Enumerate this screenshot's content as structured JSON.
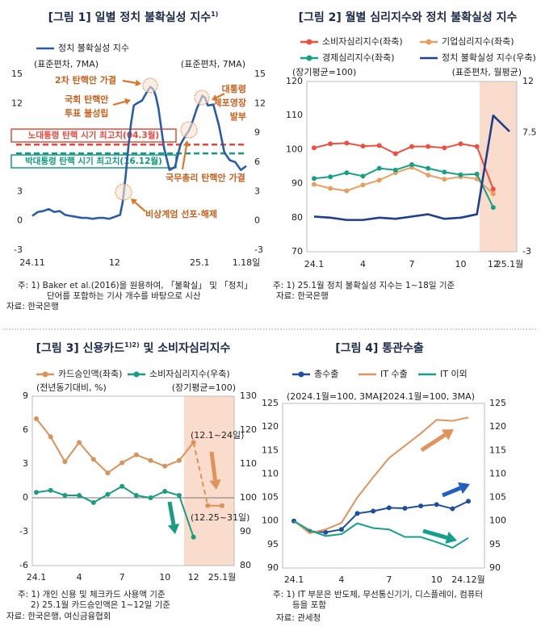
{
  "chart_data": [
    {
      "type": "line",
      "title": [
        "[그림 1] 일별 정치 불확실성 지수",
        "1)"
      ],
      "y_label": "(표준편차, 7MA)",
      "y2_label": "(표준편차, 7MA)",
      "x": [
        0,
        2,
        4,
        6,
        8,
        10,
        12,
        14,
        16,
        18,
        20,
        22,
        24,
        26,
        28,
        30,
        32,
        33,
        34,
        35,
        36,
        37,
        38,
        40,
        42,
        43,
        44,
        45,
        46,
        48,
        50,
        52,
        54,
        56,
        57,
        58,
        60,
        62,
        63,
        64,
        66,
        68,
        70,
        72,
        74,
        76,
        78
      ],
      "xlim": [
        0,
        78
      ],
      "xticks": [
        {
          "value": 0,
          "label": "24.11"
        },
        {
          "value": 30,
          "label": "12"
        },
        {
          "value": 61,
          "label": "25.1"
        },
        {
          "value": 78,
          "label": "1.18일"
        }
      ],
      "ylim": [
        -3,
        15
      ],
      "yticks": [
        -3,
        0,
        3,
        6,
        9,
        12,
        15
      ],
      "y2lim": [
        -3,
        15
      ],
      "y2ticks": [
        -3,
        0,
        3,
        6,
        9,
        12,
        15
      ],
      "series": [
        {
          "name": "정치 불확실성 지수",
          "color": "#2b5ca8",
          "values": [
            0.5,
            0.9,
            1.0,
            1.2,
            0.9,
            1.0,
            0.6,
            0.5,
            0.4,
            0.3,
            0.3,
            0.2,
            0.3,
            0.3,
            0.2,
            0.4,
            0.6,
            2.0,
            4.5,
            7.5,
            10.0,
            11.8,
            12.0,
            12.3,
            13.3,
            13.7,
            13.5,
            12.8,
            11.5,
            7.5,
            5.2,
            5.5,
            7.8,
            8.8,
            9.2,
            9.8,
            11.5,
            12.8,
            12.6,
            11.8,
            11.9,
            9.8,
            7.0,
            6.2,
            6.0,
            5.2,
            5.6
          ]
        }
      ],
      "reference_lines": [
        {
          "label": "노대통령 탄핵 시기 최고치(04.3월)",
          "value": 7.8,
          "color": "#e8483b"
        },
        {
          "label": "박대통령 탄핵 시기 최고치(16.12월)",
          "value": 6.9,
          "color": "#139b7f"
        }
      ],
      "annotations": [
        {
          "lines": [
            "2차 탄핵안 가결"
          ]
        },
        {
          "lines": [
            "국회 탄핵안",
            "투표 불성립"
          ]
        },
        {
          "lines": [
            "대통령",
            "체포영장",
            "발부"
          ]
        },
        {
          "lines": [
            "국무총리 탄핵안 가결"
          ]
        },
        {
          "lines": [
            "비상계엄 선포·해제"
          ]
        }
      ],
      "notes": [
        "주: 1) Baker et al.(2016)을 원용하여, 「불확실」 및 「정치」",
        "단어를 포함하는 기사 개수를 바탕으로 시산",
        "자료: 한국은행"
      ]
    },
    {
      "type": "line",
      "title": [
        "[그림 2] 월별 심리지수와 정치 불확실성 지수"
      ],
      "y_label": "(장기평균=100)",
      "y2_label": "(표준편차, 월평균)",
      "categories": [
        "24.1",
        null,
        null,
        "4",
        null,
        null,
        "7",
        null,
        null,
        "10",
        null,
        "12",
        "25.1월"
      ],
      "ylim": [
        70,
        120
      ],
      "yticks": [
        70,
        80,
        90,
        100,
        110,
        120
      ],
      "y2lim": [
        -3,
        12
      ],
      "y2ticks": [
        -3,
        7.5,
        12
      ],
      "series": [
        {
          "name": "소비자심리지수(좌축)",
          "color": "#f04e3e",
          "marker": true,
          "values": [
            100.5,
            101.7,
            101.9,
            101.0,
            101.2,
            98.8,
            100.9,
            100.9,
            100.5,
            101.7,
            100.9,
            88.4,
            null
          ]
        },
        {
          "name": "기업심리지수(좌축)",
          "color": "#e6a060",
          "marker": true,
          "values": [
            89.8,
            88.6,
            87.9,
            89.6,
            91.0,
            93.2,
            94.8,
            92.5,
            91.3,
            92.0,
            91.4,
            87.0,
            null
          ]
        },
        {
          "name": "경제심리지수(좌축)",
          "color": "#17a086",
          "marker": true,
          "values": [
            91.5,
            92.0,
            93.2,
            92.2,
            94.5,
            94.0,
            95.6,
            94.5,
            93.4,
            92.6,
            92.8,
            83.0,
            null
          ]
        },
        {
          "name": "정치 불확실성 지수(우축)",
          "color": "#1f3f8c",
          "axis": "y2",
          "values": [
            0.1,
            0.0,
            -0.2,
            -0.2,
            0.0,
            -0.1,
            0.1,
            0.3,
            -0.1,
            0.0,
            0.3,
            9.0,
            7.6
          ]
        }
      ],
      "notes": [
        "주: 1) 25.1월 정치 불확실성 지수는 1~18일 기준",
        "자료: 한국은행"
      ]
    },
    {
      "type": "line",
      "title": [
        "[그림 3] 신용카드",
        "1)2)",
        " 및 소비자심리지수"
      ],
      "y_label": "(전년동기대비, %)",
      "y2_label": "(장기평균=100)",
      "categories": [
        "24.1",
        null,
        null,
        "4",
        null,
        null,
        "7",
        null,
        null,
        "10",
        null,
        "12",
        null,
        "25.1월"
      ],
      "ylim": [
        -6,
        9
      ],
      "yticks": [
        -6,
        -3,
        0,
        3,
        6,
        9
      ],
      "y2lim": [
        80,
        130
      ],
      "y2ticks": [
        80,
        90,
        100,
        110,
        120,
        130
      ],
      "series": [
        {
          "name": "카드승인액(좌축)",
          "color": "#d9925a",
          "marker": true,
          "dashed_range": [
            11,
            12
          ],
          "values": [
            7.0,
            5.4,
            3.2,
            4.9,
            3.4,
            2.2,
            3.1,
            3.8,
            3.3,
            2.8,
            3.3,
            4.9,
            -0.7,
            -0.7
          ]
        },
        {
          "name": "소비자심리지수(우축)",
          "color": "#1a9c80",
          "marker": true,
          "axis": "y2",
          "values": [
            101.6,
            102.2,
            100.7,
            100.7,
            98.6,
            101.0,
            103.4,
            100.7,
            100.0,
            101.9,
            100.7,
            88.4,
            null,
            null
          ]
        }
      ],
      "annotations": [
        {
          "lines": [
            "(12.1~24일)"
          ]
        },
        {
          "lines": [
            "(12.25~31일)"
          ]
        }
      ],
      "notes": [
        "주: 1) 개인 신용 및 체크카드 사용액 기준",
        "2) 25.1월 카드승인액은 1~12일 기준",
        "자료: 한국은행, 여신금융협회"
      ]
    },
    {
      "type": "line",
      "title": [
        "[그림 4] 통관수출"
      ],
      "y_label": "(2024.1월=100, 3MA)",
      "y2_label": "(2024.1월=100, 3MA)",
      "categories": [
        "24.1",
        null,
        null,
        "4",
        null,
        null,
        "7",
        null,
        null,
        "10",
        null,
        "24.12월"
      ],
      "ylim": [
        90,
        125
      ],
      "yticks": [
        90,
        95,
        100,
        105,
        110,
        115,
        120,
        125
      ],
      "y2lim": [
        90,
        125
      ],
      "y2ticks": [
        90,
        95,
        100,
        105,
        110,
        115,
        120,
        125
      ],
      "series": [
        {
          "name": "총수출",
          "color": "#1f4e9c",
          "marker": true,
          "values": [
            100.0,
            97.8,
            97.6,
            98.2,
            101.6,
            102.1,
            102.8,
            102.7,
            103.2,
            103.5,
            102.6,
            104.2
          ]
        },
        {
          "name": "IT 수출",
          "color": "#e0935a",
          "values": [
            100.0,
            97.4,
            98.2,
            99.6,
            105.0,
            109.3,
            113.4,
            116.0,
            118.6,
            121.5,
            121.3,
            122.0
          ]
        },
        {
          "name": "IT 이외",
          "color": "#14a08a",
          "values": [
            100.0,
            98.0,
            96.8,
            97.2,
            99.5,
            98.5,
            98.2,
            96.6,
            96.6,
            95.5,
            94.3,
            96.4
          ]
        }
      ],
      "notes": [
        "주: 1) IT 부문은 반도체, 무선통신기기, 디스플레이, 컴퓨터",
        "등을 포함",
        "자료: 관세청"
      ]
    }
  ]
}
